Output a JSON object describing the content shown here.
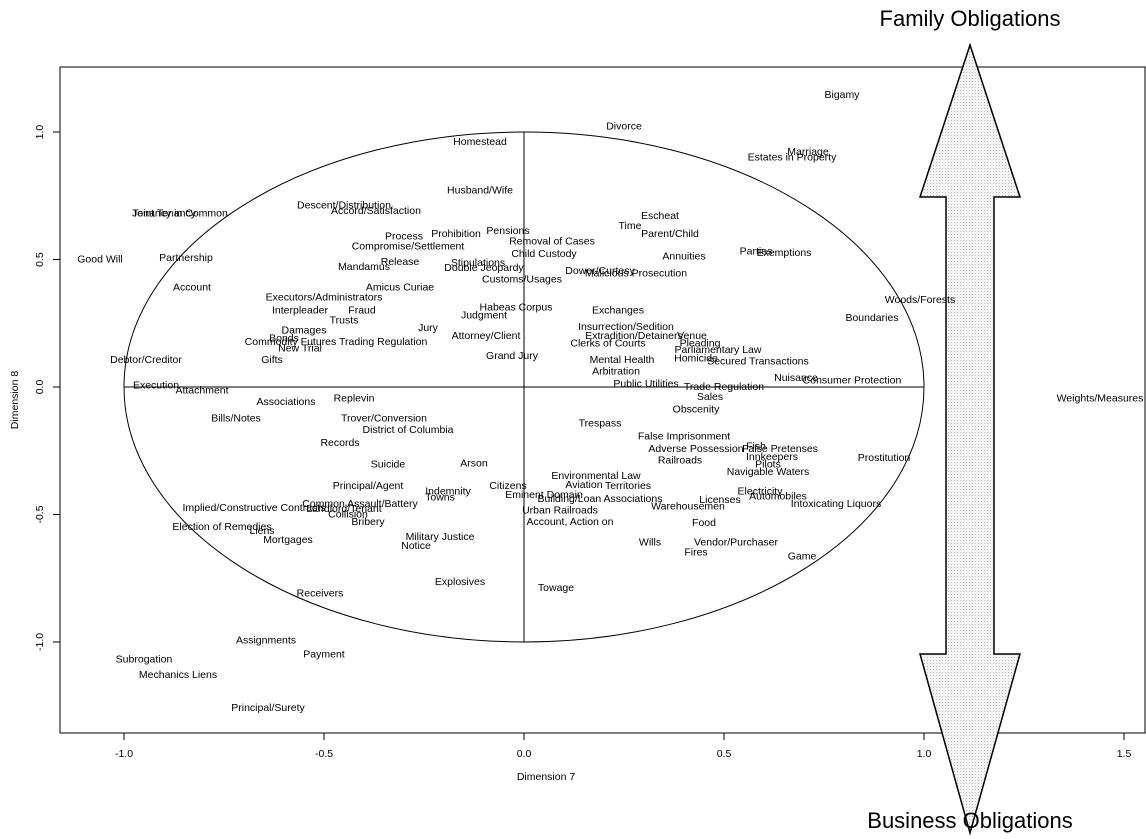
{
  "chart_data": {
    "type": "text-scatter",
    "xlabel": "Dimension 7",
    "ylabel": "Dimension 8",
    "annotations": {
      "top": "Family Obligations",
      "bottom": "Business Obligations"
    },
    "xlim": [
      -1.16,
      1.5525
    ],
    "ylim": [
      -1.357,
      1.255
    ],
    "xticks": [
      {
        "value": -1,
        "label": "-1.0"
      },
      {
        "value": -0.5,
        "label": "-0.5"
      },
      {
        "value": 0,
        "label": "0.0"
      },
      0.5,
      {
        "value": 1,
        "label": "1.0"
      },
      1.5
    ],
    "yticks": [
      {
        "value": -1,
        "label": "-1.0"
      },
      {
        "value": -0.5,
        "label": "-0.5"
      },
      {
        "value": 0,
        "label": "0.0"
      },
      0.5,
      {
        "value": 1,
        "label": "1.0"
      }
    ],
    "points": [
      {
        "label": "Bigamy",
        "x": 0.795,
        "y": 1.145
      },
      {
        "label": "Divorce",
        "x": 0.25,
        "y": 1.02
      },
      {
        "label": "Marriage",
        "x": 0.71,
        "y": 0.92
      },
      {
        "label": "Estates in Property",
        "x": 0.67,
        "y": 0.9
      },
      {
        "label": "Homestead",
        "x": -0.11,
        "y": 0.96
      },
      {
        "label": "Husband/Wife",
        "x": -0.11,
        "y": 0.77
      },
      {
        "label": "Tenancy in Common",
        "x": -0.86,
        "y": 0.68
      },
      {
        "label": "Joint Tenancy",
        "x": -0.9,
        "y": 0.68
      },
      {
        "label": "Descent/Distribution",
        "x": -0.45,
        "y": 0.71
      },
      {
        "label": "Accord/Satisfaction",
        "x": -0.37,
        "y": 0.69
      },
      {
        "label": "Escheat",
        "x": 0.34,
        "y": 0.67
      },
      {
        "label": "Time",
        "x": 0.265,
        "y": 0.63
      },
      {
        "label": "Process",
        "x": -0.3,
        "y": 0.59
      },
      {
        "label": "Prohibition",
        "x": -0.17,
        "y": 0.6
      },
      {
        "label": "Pensions",
        "x": -0.04,
        "y": 0.61
      },
      {
        "label": "Removal of Cases",
        "x": 0.07,
        "y": 0.57
      },
      {
        "label": "Parent/Child",
        "x": 0.365,
        "y": 0.6
      },
      {
        "label": "Compromise/Settlement",
        "x": -0.29,
        "y": 0.55
      },
      {
        "label": "Child Custody",
        "x": 0.05,
        "y": 0.52
      },
      {
        "label": "Annuities",
        "x": 0.4,
        "y": 0.51
      },
      {
        "label": "Parties",
        "x": 0.58,
        "y": 0.53
      },
      {
        "label": "Exemptions",
        "x": 0.65,
        "y": 0.525
      },
      {
        "label": "Good Will",
        "x": -1.06,
        "y": 0.5
      },
      {
        "label": "Partnership",
        "x": -0.845,
        "y": 0.505
      },
      {
        "label": "Release",
        "x": -0.31,
        "y": 0.49
      },
      {
        "label": "Mandamus",
        "x": -0.4,
        "y": 0.47
      },
      {
        "label": "Stipulations",
        "x": -0.115,
        "y": 0.485
      },
      {
        "label": "Double Jeopardy",
        "x": -0.1,
        "y": 0.465
      },
      {
        "label": "Dower/Curtesy",
        "x": 0.19,
        "y": 0.455
      },
      {
        "label": "Malicious Prosecution",
        "x": 0.28,
        "y": 0.445
      },
      {
        "label": "Customs/Usages",
        "x": -0.005,
        "y": 0.42
      },
      {
        "label": "Account",
        "x": -0.83,
        "y": 0.39
      },
      {
        "label": "Amicus Curiae",
        "x": -0.31,
        "y": 0.39
      },
      {
        "label": "Executors/Administrators",
        "x": -0.5,
        "y": 0.35
      },
      {
        "label": "Interpleader",
        "x": -0.56,
        "y": 0.3
      },
      {
        "label": "Fraud",
        "x": -0.405,
        "y": 0.3
      },
      {
        "label": "Exchanges",
        "x": 0.235,
        "y": 0.3
      },
      {
        "label": "Habeas Corpus",
        "x": -0.02,
        "y": 0.31
      },
      {
        "label": "Trusts",
        "x": -0.45,
        "y": 0.26
      },
      {
        "label": "Jury",
        "x": -0.24,
        "y": 0.23
      },
      {
        "label": "Judgment",
        "x": -0.1,
        "y": 0.28
      },
      {
        "label": "Damages",
        "x": -0.55,
        "y": 0.22
      },
      {
        "label": "Insurrection/Sedition",
        "x": 0.255,
        "y": 0.235
      },
      {
        "label": "Venue",
        "x": 0.42,
        "y": 0.2
      },
      {
        "label": "Woods/Forests",
        "x": 0.99,
        "y": 0.34
      },
      {
        "label": "Boundaries",
        "x": 0.87,
        "y": 0.27
      },
      {
        "label": "Bonds",
        "x": -0.6,
        "y": 0.19
      },
      {
        "label": "Commodity Futures Trading Regulation",
        "x": -0.47,
        "y": 0.175
      },
      {
        "label": "New Trial",
        "x": -0.56,
        "y": 0.15
      },
      {
        "label": "Attorney/Client",
        "x": -0.095,
        "y": 0.2
      },
      {
        "label": "Clerks of Courts",
        "x": 0.21,
        "y": 0.17
      },
      {
        "label": "Extradition/Detainers",
        "x": 0.275,
        "y": 0.2
      },
      {
        "label": "Pleading",
        "x": 0.44,
        "y": 0.17
      },
      {
        "label": "Parliamentary Law",
        "x": 0.485,
        "y": 0.145
      },
      {
        "label": "Grand Jury",
        "x": -0.03,
        "y": 0.12
      },
      {
        "label": "Mental Health",
        "x": 0.245,
        "y": 0.105
      },
      {
        "label": "Homicide",
        "x": 0.43,
        "y": 0.11
      },
      {
        "label": "Secured Transactions",
        "x": 0.585,
        "y": 0.1
      },
      {
        "label": "Debtor/Creditor",
        "x": -0.945,
        "y": 0.105
      },
      {
        "label": "Gifts",
        "x": -0.63,
        "y": 0.105
      },
      {
        "label": "Arbitration",
        "x": 0.23,
        "y": 0.06
      },
      {
        "label": "Nuisance",
        "x": 0.68,
        "y": 0.035
      },
      {
        "label": "Consumer Protection",
        "x": 0.82,
        "y": 0.025
      },
      {
        "label": "Trade Regulation",
        "x": 0.5,
        "y": 0
      },
      {
        "label": "Public Utilities",
        "x": 0.305,
        "y": 0.01
      },
      {
        "label": "Execution",
        "x": -0.92,
        "y": 0.005
      },
      {
        "label": "Attachment",
        "x": -0.805,
        "y": -0.015
      },
      {
        "label": "Weights/Measures",
        "x": 1.44,
        "y": -0.045
      },
      {
        "label": "Associations",
        "x": -0.595,
        "y": -0.06
      },
      {
        "label": "Replevin",
        "x": -0.425,
        "y": -0.045
      },
      {
        "label": "Bills/Notes",
        "x": -0.72,
        "y": -0.125
      },
      {
        "label": "Sales",
        "x": 0.465,
        "y": -0.04
      },
      {
        "label": "Obscenity",
        "x": 0.43,
        "y": -0.09
      },
      {
        "label": "Trover/Conversion",
        "x": -0.35,
        "y": -0.125
      },
      {
        "label": "District of Columbia",
        "x": -0.29,
        "y": -0.17
      },
      {
        "label": "Trespass",
        "x": 0.19,
        "y": -0.145
      },
      {
        "label": "Records",
        "x": -0.46,
        "y": -0.22
      },
      {
        "label": "False Imprisonment",
        "x": 0.4,
        "y": -0.195
      },
      {
        "label": "Adverse Possession",
        "x": 0.43,
        "y": -0.245
      },
      {
        "label": "Fish",
        "x": 0.58,
        "y": -0.235
      },
      {
        "label": "False Pretenses",
        "x": 0.64,
        "y": -0.245
      },
      {
        "label": "Innkeepers",
        "x": 0.62,
        "y": -0.275
      },
      {
        "label": "Railroads",
        "x": 0.39,
        "y": -0.29
      },
      {
        "label": "Prostitution",
        "x": 0.9,
        "y": -0.28
      },
      {
        "label": "Pilots",
        "x": 0.61,
        "y": -0.305
      },
      {
        "label": "Navigable Waters",
        "x": 0.61,
        "y": -0.335
      },
      {
        "label": "Arson",
        "x": -0.125,
        "y": -0.3
      },
      {
        "label": "Suicide",
        "x": -0.34,
        "y": -0.305
      },
      {
        "label": "Environmental Law",
        "x": 0.18,
        "y": -0.35
      },
      {
        "label": "Aviation",
        "x": 0.15,
        "y": -0.385
      },
      {
        "label": "Territories",
        "x": 0.26,
        "y": -0.39
      },
      {
        "label": "Principal/Agent",
        "x": -0.39,
        "y": -0.39
      },
      {
        "label": "Citizens",
        "x": -0.04,
        "y": -0.39
      },
      {
        "label": "Indemnity",
        "x": -0.19,
        "y": -0.41
      },
      {
        "label": "Towns",
        "x": -0.21,
        "y": -0.435
      },
      {
        "label": "Electricity",
        "x": 0.59,
        "y": -0.41
      },
      {
        "label": "Automobiles",
        "x": 0.635,
        "y": -0.43
      },
      {
        "label": "Intoxicating Liquors",
        "x": 0.78,
        "y": -0.46
      },
      {
        "label": "Licenses",
        "x": 0.49,
        "y": -0.445
      },
      {
        "label": "Warehousemen",
        "x": 0.41,
        "y": -0.47
      },
      {
        "label": "Building/Loan Associations",
        "x": 0.19,
        "y": -0.44
      },
      {
        "label": "Eminent Domain",
        "x": 0.05,
        "y": -0.425
      },
      {
        "label": "Urban Railroads",
        "x": 0.09,
        "y": -0.485
      },
      {
        "label": "Common Assault/Battery",
        "x": -0.41,
        "y": -0.46
      },
      {
        "label": "Landlord/Tenant",
        "x": -0.45,
        "y": -0.48
      },
      {
        "label": "Implied/Constructive Contracts",
        "x": -0.675,
        "y": -0.475
      },
      {
        "label": "Collision",
        "x": -0.44,
        "y": -0.5
      },
      {
        "label": "Bribery",
        "x": -0.39,
        "y": -0.53
      },
      {
        "label": "Account, Action on",
        "x": 0.115,
        "y": -0.53
      },
      {
        "label": "Food",
        "x": 0.45,
        "y": -0.535
      },
      {
        "label": "Election of Remedies",
        "x": -0.755,
        "y": -0.55
      },
      {
        "label": "Liens",
        "x": -0.655,
        "y": -0.565
      },
      {
        "label": "Mortgages",
        "x": -0.59,
        "y": -0.6
      },
      {
        "label": "Military Justice",
        "x": -0.21,
        "y": -0.59
      },
      {
        "label": "Notice",
        "x": -0.27,
        "y": -0.625
      },
      {
        "label": "Wills",
        "x": 0.315,
        "y": -0.61
      },
      {
        "label": "Vendor/Purchaser",
        "x": 0.53,
        "y": -0.61
      },
      {
        "label": "Fires",
        "x": 0.43,
        "y": -0.65
      },
      {
        "label": "Game",
        "x": 0.695,
        "y": -0.665
      },
      {
        "label": "Explosives",
        "x": -0.16,
        "y": -0.765
      },
      {
        "label": "Towage",
        "x": 0.08,
        "y": -0.79
      },
      {
        "label": "Receivers",
        "x": -0.51,
        "y": -0.81
      },
      {
        "label": "Assignments",
        "x": -0.645,
        "y": -0.995
      },
      {
        "label": "Payment",
        "x": -0.5,
        "y": -1.05
      },
      {
        "label": "Subrogation",
        "x": -0.95,
        "y": -1.07
      },
      {
        "label": "Mechanics Liens",
        "x": -0.865,
        "y": -1.13
      },
      {
        "label": "Principal/Surety",
        "x": -0.64,
        "y": -1.26
      }
    ]
  }
}
